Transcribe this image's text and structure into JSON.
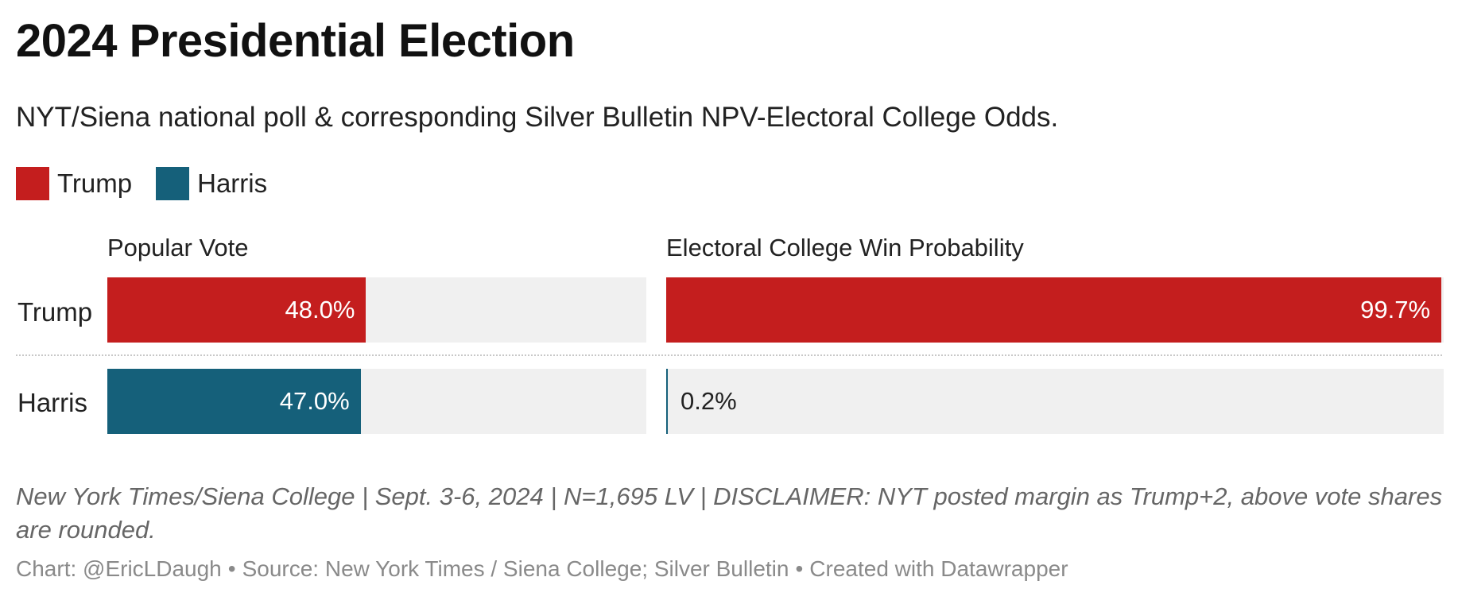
{
  "header": {
    "title": "2024 Presidential Election",
    "subtitle": "NYT/Siena national poll & corresponding Silver Bulletin NPV-Electoral College Odds."
  },
  "legend": [
    {
      "label": "Trump",
      "color": "#c41e1e"
    },
    {
      "label": "Harris",
      "color": "#15607a"
    }
  ],
  "panels": {
    "popular_vote": "Popular Vote",
    "electoral_college": "Electoral College Win Probability"
  },
  "notes": "New York Times/Siena College | Sept. 3-6, 2024 | N=1,695 LV | DISCLAIMER: NYT posted margin as Trump+2, above vote shares are rounded.",
  "footer": {
    "chart_credit": "Chart: @EricLDaugh",
    "source": "Source: New York Times / Siena College; Silver Bulletin",
    "tool": "Created with Datawrapper"
  },
  "chart_data": {
    "type": "bar",
    "orientation": "horizontal",
    "title": "2024 Presidential Election",
    "subtitle": "NYT/Siena national poll & corresponding Silver Bulletin NPV-Electoral College Odds.",
    "categories": [
      "Trump",
      "Harris"
    ],
    "colors": {
      "Trump": "#c41e1e",
      "Harris": "#15607a"
    },
    "series": [
      {
        "name": "Popular Vote",
        "values": [
          48.0,
          47.0
        ],
        "labels": [
          "48.0%",
          "47.0%"
        ],
        "xlim": [
          0,
          100
        ]
      },
      {
        "name": "Electoral College Win Probability",
        "values": [
          99.7,
          0.2
        ],
        "labels": [
          "99.7%",
          "0.2%"
        ],
        "xlim": [
          0,
          100
        ]
      }
    ],
    "legend_position": "top-left",
    "grid": false
  }
}
